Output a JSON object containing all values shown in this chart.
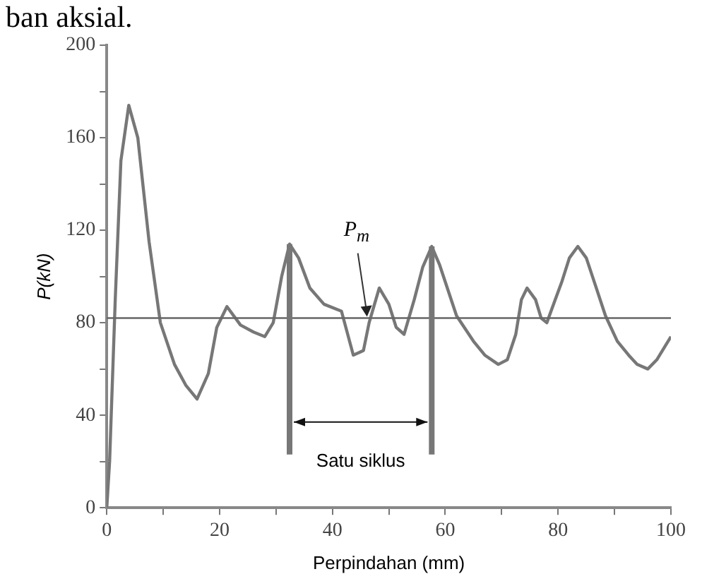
{
  "chart_data": {
    "type": "line",
    "xlabel": "Perpindahan (mm)",
    "ylabel": "P(kN)",
    "x": [
      0,
      0.5,
      1.5,
      2.5,
      3.9,
      5.5,
      7.5,
      9.5,
      12,
      14,
      16,
      18,
      19.5,
      21.3,
      23.7,
      26,
      28,
      29.5,
      31,
      32.4,
      34,
      36,
      38.5,
      41.6,
      43.7,
      45.5,
      46.5,
      48.3,
      50,
      51.3,
      52.7,
      54.5,
      56,
      57.6,
      59,
      62,
      65,
      67,
      69.4,
      71,
      72.5,
      73.5,
      74.5,
      76,
      77,
      78,
      79.5,
      80.7,
      82,
      83.5,
      85,
      86.5,
      88.4,
      90.5,
      92.5,
      94,
      95.9,
      97.5,
      99,
      100
    ],
    "series": [
      {
        "color": "#777777",
        "values": [
          0,
          20,
          90,
          150,
          174,
          160,
          115,
          80,
          62,
          53,
          47,
          58,
          78,
          87,
          79,
          76,
          74,
          80,
          100,
          114,
          108,
          95,
          88,
          85,
          66,
          68,
          80,
          95,
          88,
          78,
          75,
          90,
          104,
          113,
          105,
          83,
          72,
          66,
          62,
          64,
          75,
          90,
          95,
          90,
          82,
          80,
          90,
          98,
          108,
          113,
          108,
          97,
          83,
          72,
          66,
          62,
          60,
          64,
          70,
          74
        ]
      }
    ],
    "xlim": [
      0,
      100
    ],
    "ylim": [
      0,
      200
    ],
    "xticks": [
      0,
      {
        "value": 10,
        "label": null
      },
      20,
      {
        "value": 30,
        "label": null
      },
      40,
      {
        "value": 50,
        "label": null
      },
      60,
      {
        "value": 70,
        "label": null
      },
      80,
      {
        "value": 90,
        "label": null
      },
      100
    ],
    "yticks": [
      0,
      {
        "value": 20,
        "label": null
      },
      40,
      {
        "value": 60,
        "label": null
      },
      80,
      {
        "value": 100,
        "label": null
      },
      120,
      {
        "value": 140,
        "label": null
      },
      160,
      {
        "value": 180,
        "label": null
      },
      200
    ],
    "grid": false,
    "legend": false,
    "marker": "none",
    "line_style": "solid",
    "ref_lines": [
      {
        "axis": "y",
        "value": 82,
        "label": "P$_{m}$",
        "color": "#666666"
      },
      {
        "axis": "x",
        "value": 32.4,
        "color": "#777777"
      },
      {
        "axis": "x",
        "value": 57.6,
        "color": "#777777"
      }
    ],
    "annotations": [
      "ban aksial.",
      "Satu siklus"
    ]
  }
}
